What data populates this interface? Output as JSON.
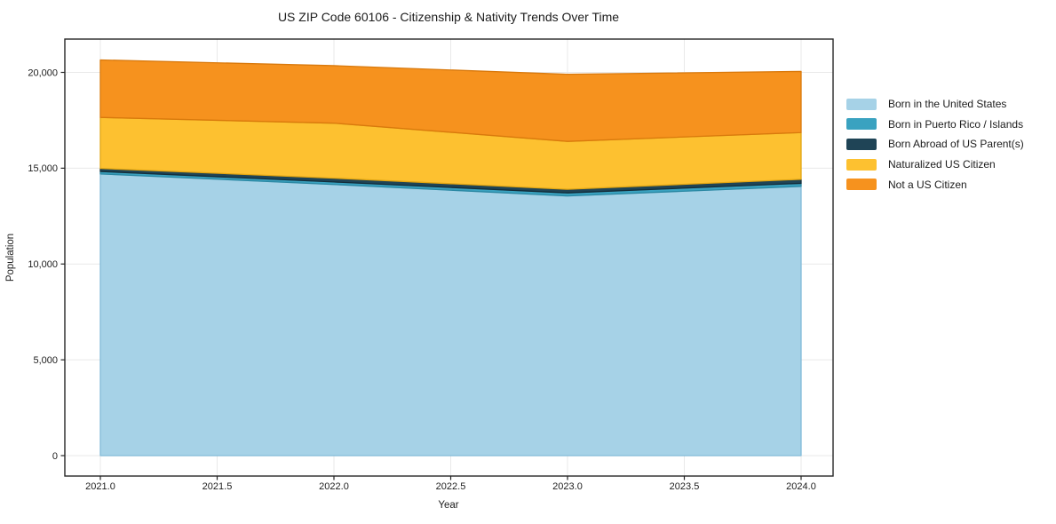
{
  "title": "US ZIP Code 60106 - Citizenship & Nativity Trends Over Time",
  "axes": {
    "xlabel": "Year",
    "ylabel": "Population",
    "x_ticks": [
      "2021.0",
      "2021.5",
      "2022.0",
      "2022.5",
      "2023.0",
      "2023.5",
      "2024.0"
    ],
    "x_tick_values": [
      2021.0,
      2021.5,
      2022.0,
      2022.5,
      2023.0,
      2023.5,
      2024.0
    ],
    "y_ticks": [
      "0",
      "5,000",
      "10,000",
      "15,000",
      "20,000"
    ],
    "y_tick_values": [
      0,
      5000,
      10000,
      15000,
      20000
    ]
  },
  "legend": {
    "position": "right",
    "items": [
      {
        "label": "Born in the United States",
        "color": "#a6d2e7"
      },
      {
        "label": "Born in Puerto Rico / Islands",
        "color": "#3aa2c0"
      },
      {
        "label": "Born Abroad of US Parent(s)",
        "color": "#1f4456"
      },
      {
        "label": "Naturalized US Citizen",
        "color": "#fdc130"
      },
      {
        "label": "Not a US Citizen",
        "color": "#f6921e"
      }
    ]
  },
  "chart_data": {
    "type": "area",
    "stacked": true,
    "title": "US ZIP Code 60106 - Citizenship & Nativity Trends Over Time",
    "xlabel": "Year",
    "ylabel": "Population",
    "x": [
      2021,
      2022,
      2023,
      2024
    ],
    "series": [
      {
        "name": "Born in the United States",
        "values": [
          14700,
          14150,
          13550,
          14050
        ],
        "color": "#a6d2e7",
        "edge": "#82bbd8"
      },
      {
        "name": "Born in Puerto Rico / Islands",
        "values": [
          130,
          130,
          160,
          160
        ],
        "color": "#3aa2c0",
        "edge": "#2c89a4"
      },
      {
        "name": "Born Abroad of US Parent(s)",
        "values": [
          160,
          200,
          190,
          210
        ],
        "color": "#1f4456",
        "edge": "#142e3b"
      },
      {
        "name": "Naturalized US Citizen",
        "values": [
          2660,
          2870,
          2500,
          2440
        ],
        "color": "#fdc130",
        "edge": "#e2a613"
      },
      {
        "name": "Not a US Citizen",
        "values": [
          3000,
          3000,
          3500,
          3190
        ],
        "color": "#f6921e",
        "edge": "#d9790c"
      }
    ],
    "totals": [
      20650,
      20350,
      19900,
      20050
    ],
    "xlim": [
      2020.85,
      2024.15
    ],
    "ylim": [
      0,
      21700
    ],
    "grid": true,
    "legend_position": "right"
  }
}
